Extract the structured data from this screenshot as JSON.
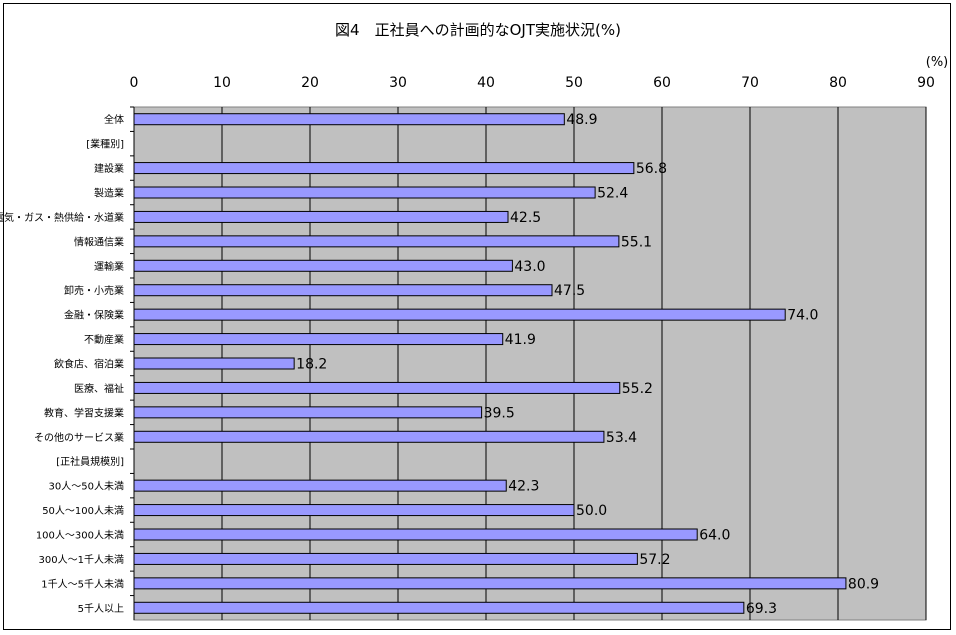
{
  "chart_data": {
    "type": "bar",
    "orientation": "horizontal",
    "title": "図4　正社員への計画的なOJT実施状況(%)",
    "unit_label": "(%)",
    "xlim": [
      0,
      90
    ],
    "xticks": [
      0,
      10,
      20,
      30,
      40,
      50,
      60,
      70,
      80,
      90
    ],
    "xtick_labels": [
      "0",
      "10",
      "20",
      "30",
      "40",
      "50",
      "60",
      "70",
      "80",
      "90"
    ],
    "grid": true,
    "plot_background": "#c0c0c0",
    "bar_color": "#9999ff",
    "categories": [
      "全体",
      "[業種別]",
      "建設業",
      "製造業",
      "電気・ガス・熱供給・水道業",
      "情報通信業",
      "運輸業",
      "卸売・小売業",
      "金融・保険業",
      "不動産業",
      "飲食店、宿泊業",
      "医療、福祉",
      "教育、学習支援業",
      "その他のサービス業",
      "[正社員規模別]",
      "30人～50人未満",
      "50人～100人未満",
      "100人～300人未満",
      "300人～1千人未満",
      "1千人～5千人未満",
      "5千人以上"
    ],
    "values": [
      48.9,
      null,
      56.8,
      52.4,
      42.5,
      55.1,
      43.0,
      47.5,
      74.0,
      41.9,
      18.2,
      55.2,
      39.5,
      53.4,
      null,
      42.3,
      50.0,
      64.0,
      57.2,
      80.9,
      69.3
    ],
    "value_labels": [
      "48.9",
      "",
      "56.8",
      "52.4",
      "42.5",
      "55.1",
      "43.0",
      "47.5",
      "74.0",
      "41.9",
      "18.2",
      "55.2",
      "39.5",
      "53.4",
      "",
      "42.3",
      "50.0",
      "64.0",
      "57.2",
      "80.9",
      "69.3"
    ]
  }
}
